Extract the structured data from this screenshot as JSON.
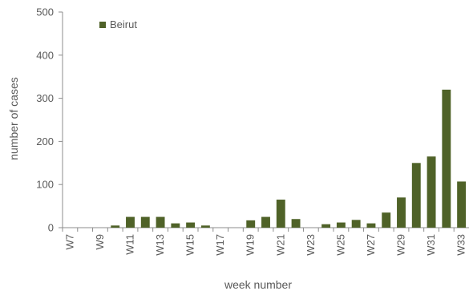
{
  "chart_data": {
    "type": "bar",
    "categories": [
      "W7",
      "W8",
      "W9",
      "W10",
      "W11",
      "W12",
      "W13",
      "W14",
      "W15",
      "W16",
      "W17",
      "W18",
      "W19",
      "W20",
      "W21",
      "W22",
      "W23",
      "W24",
      "W25",
      "W26",
      "W27",
      "W28",
      "W29",
      "W30",
      "W31",
      "W32",
      "W33"
    ],
    "x_tick_labels": [
      "W7",
      "",
      "W9",
      "",
      "W11",
      "",
      "W13",
      "",
      "W15",
      "",
      "W17",
      "",
      "W19",
      "",
      "W21",
      "",
      "W23",
      "",
      "W25",
      "",
      "W27",
      "",
      "W29",
      "",
      "W31",
      "",
      "W33"
    ],
    "series": [
      {
        "name": "Beirut",
        "color": "#4f6228",
        "values": [
          0,
          0,
          0,
          5,
          25,
          25,
          25,
          10,
          12,
          5,
          0,
          0,
          17,
          25,
          65,
          20,
          0,
          8,
          12,
          18,
          10,
          35,
          70,
          150,
          165,
          320,
          107
        ]
      }
    ],
    "xlabel": "week number",
    "ylabel": "number of cases",
    "ylim": [
      0,
      500
    ],
    "yticks": [
      0,
      100,
      200,
      300,
      400,
      500
    ],
    "grid": false,
    "legend_position": "top-left"
  }
}
